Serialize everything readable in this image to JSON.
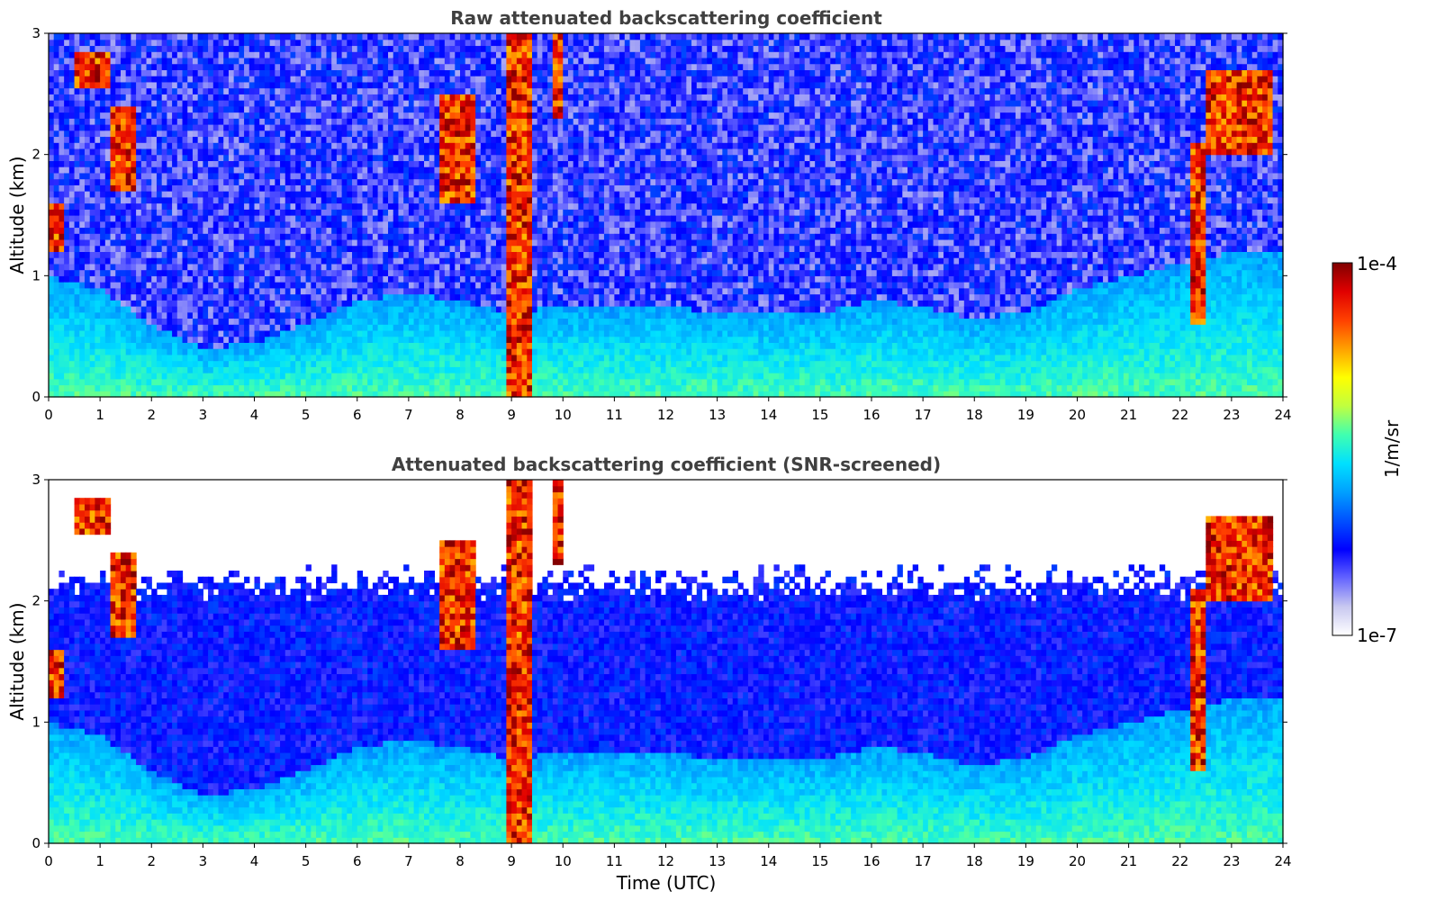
{
  "chart_data": [
    {
      "type": "heatmap",
      "title": "Raw attenuated backscattering coefficient",
      "xlabel": "",
      "ylabel": "Altitude (km)",
      "xlim": [
        0,
        24
      ],
      "ylim": [
        0,
        3
      ],
      "xticks": [
        "0",
        "1",
        "2",
        "3",
        "4",
        "5",
        "6",
        "7",
        "8",
        "9",
        "10",
        "11",
        "12",
        "13",
        "14",
        "15",
        "16",
        "17",
        "18",
        "19",
        "20",
        "21",
        "22",
        "23",
        "24"
      ],
      "yticks": [
        "0",
        "1",
        "2",
        "3"
      ],
      "screened": false,
      "boundary_layer_top_km": [
        [
          0,
          1.0
        ],
        [
          1,
          0.9
        ],
        [
          2,
          0.6
        ],
        [
          3,
          0.4
        ],
        [
          4,
          0.45
        ],
        [
          5,
          0.6
        ],
        [
          6,
          0.8
        ],
        [
          7,
          0.85
        ],
        [
          8,
          0.8
        ],
        [
          9,
          0.7
        ],
        [
          10,
          0.75
        ],
        [
          11,
          0.75
        ],
        [
          12,
          0.75
        ],
        [
          13,
          0.7
        ],
        [
          14,
          0.7
        ],
        [
          15,
          0.7
        ],
        [
          16,
          0.8
        ],
        [
          17,
          0.75
        ],
        [
          18,
          0.65
        ],
        [
          19,
          0.7
        ],
        [
          20,
          0.9
        ],
        [
          21,
          1.0
        ],
        [
          22,
          1.1
        ],
        [
          23,
          1.2
        ],
        [
          24,
          1.2
        ]
      ],
      "cloud_features": [
        {
          "t0": 0.5,
          "t1": 1.2,
          "z0": 2.55,
          "z1": 2.85
        },
        {
          "t0": 1.2,
          "t1": 1.7,
          "z0": 1.7,
          "z1": 2.4
        },
        {
          "t0": 0.05,
          "t1": 0.3,
          "z0": 1.2,
          "z1": 1.6
        },
        {
          "t0": 7.6,
          "t1": 8.3,
          "z0": 1.6,
          "z1": 2.5
        },
        {
          "t0": 8.9,
          "t1": 9.4,
          "z0": 0.0,
          "z1": 3.0
        },
        {
          "t0": 9.8,
          "t1": 10.0,
          "z0": 2.3,
          "z1": 3.0
        },
        {
          "t0": 22.2,
          "t1": 22.5,
          "z0": 0.6,
          "z1": 2.1
        },
        {
          "t0": 22.5,
          "t1": 23.8,
          "z0": 2.0,
          "z1": 2.7
        }
      ]
    },
    {
      "type": "heatmap",
      "title": "Attenuated backscattering coefficient (SNR-screened)",
      "xlabel": "Time (UTC)",
      "ylabel": "Altitude (km)",
      "xlim": [
        0,
        24
      ],
      "ylim": [
        0,
        3
      ],
      "xticks": [
        "0",
        "1",
        "2",
        "3",
        "4",
        "5",
        "6",
        "7",
        "8",
        "9",
        "10",
        "11",
        "12",
        "13",
        "14",
        "15",
        "16",
        "17",
        "18",
        "19",
        "20",
        "21",
        "22",
        "23",
        "24"
      ],
      "yticks": [
        "0",
        "1",
        "2",
        "3"
      ],
      "screened": true
    }
  ],
  "colorbar": {
    "label": "1/m/sr",
    "min_label": "1e-7",
    "max_label": "1e-4",
    "scale": "log",
    "range": [
      1e-07,
      0.0001
    ],
    "colors": [
      "#ffffff",
      "#c8c8f0",
      "#6464ff",
      "#0000ff",
      "#0050ff",
      "#00a0ff",
      "#00e0ff",
      "#40ffb0",
      "#c0ff40",
      "#ffff00",
      "#ffa000",
      "#ff4000",
      "#e00000",
      "#800000"
    ]
  }
}
